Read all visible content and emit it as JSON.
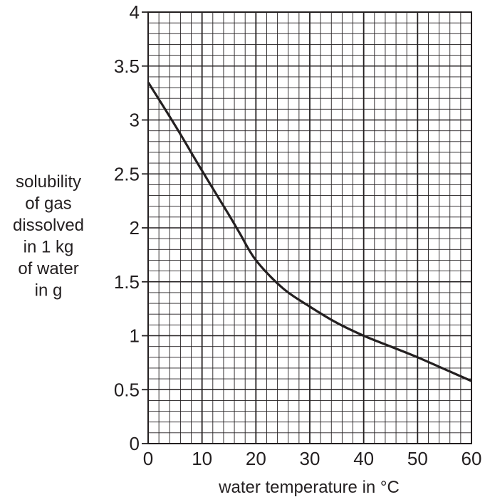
{
  "chart_data": {
    "type": "line",
    "title": "",
    "xlabel": "water temperature in °C",
    "ylabel_lines": [
      "solubility",
      "of gas",
      "dissolved",
      "in 1 kg",
      "of water",
      "in g"
    ],
    "xlim": [
      0,
      60
    ],
    "ylim": [
      0,
      4
    ],
    "x_ticks": [
      0,
      10,
      20,
      30,
      40,
      50,
      60
    ],
    "x_tick_labels": [
      "0",
      "10",
      "20",
      "30",
      "40",
      "50",
      "60"
    ],
    "y_ticks": [
      0,
      0.5,
      1,
      1.5,
      2,
      2.5,
      3,
      3.5,
      4
    ],
    "y_tick_labels": [
      "0",
      "0.5",
      "1",
      "1.5",
      "2",
      "2.5",
      "3",
      "3.5",
      "4"
    ],
    "grid": true,
    "grid_minor_x_step": 2,
    "grid_minor_y_step": 0.1,
    "series": [
      {
        "x": [
          0,
          5,
          10,
          15,
          17,
          20,
          25,
          30,
          35,
          40,
          45,
          50,
          55,
          60
        ],
        "y": [
          3.35,
          2.95,
          2.53,
          2.12,
          1.95,
          1.7,
          1.44,
          1.27,
          1.12,
          1.0,
          0.9,
          0.8,
          0.69,
          0.58
        ]
      }
    ],
    "colors": {
      "line": "#231f20",
      "grid": "#231f20",
      "text": "#231f20"
    }
  }
}
